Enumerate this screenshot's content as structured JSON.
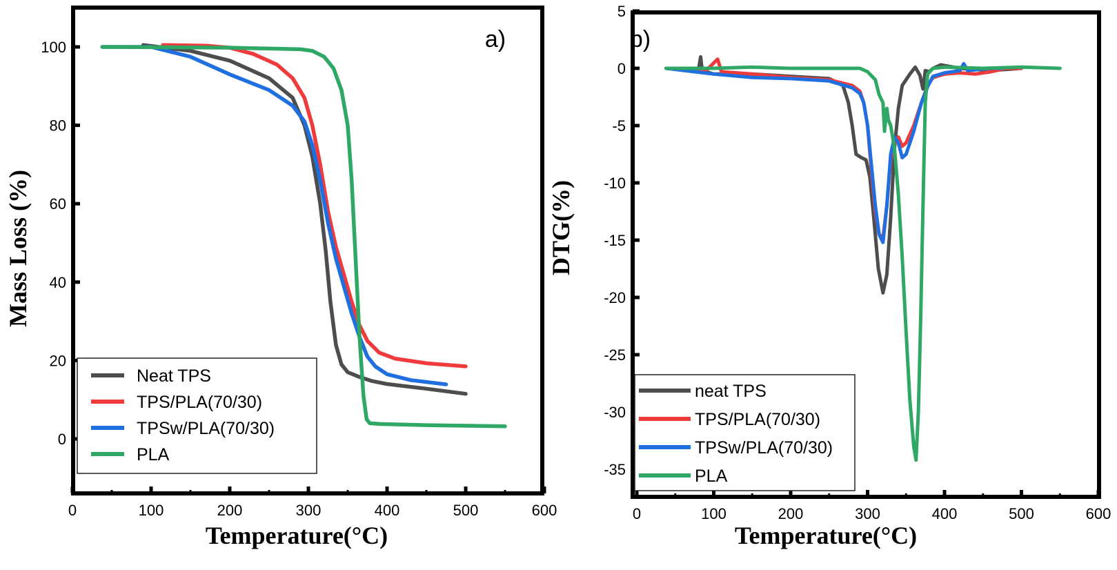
{
  "chart_data": [
    {
      "type": "line",
      "panel_label": "a)",
      "title": "",
      "xlabel": "Temperature(°C)",
      "ylabel": "Mass Loss (%)",
      "xlim": [
        0,
        600
      ],
      "ylim": [
        -10,
        110
      ],
      "xticks": [
        0,
        100,
        200,
        300,
        400,
        500,
        600
      ],
      "xtick_labels": [
        "0",
        "100",
        "200",
        "300",
        "400",
        "500",
        "600"
      ],
      "yticks": [
        0,
        20,
        40,
        60,
        80,
        100
      ],
      "ytick_labels": [
        "0",
        "20",
        "40",
        "60",
        "80",
        "100"
      ],
      "grid": false,
      "legend_position": "bottom-left",
      "series": [
        {
          "name": "Neat TPS",
          "color": "#4d4d4d",
          "x": [
            90,
            150,
            200,
            250,
            280,
            295,
            305,
            315,
            322,
            328,
            335,
            342,
            350,
            365,
            380,
            400,
            450,
            500
          ],
          "y": [
            100.5,
            99,
            96.5,
            92,
            87,
            80,
            72,
            60,
            48,
            35,
            24,
            19,
            17,
            15.8,
            14.8,
            14,
            12.8,
            11.5
          ]
        },
        {
          "name": "TPS/PLA(70/30)",
          "color": "#ef3b3b",
          "x": [
            115,
            170,
            200,
            230,
            260,
            280,
            295,
            305,
            315,
            325,
            335,
            345,
            355,
            365,
            375,
            390,
            410,
            450,
            500
          ],
          "y": [
            100.5,
            100.3,
            99.8,
            98.2,
            95.5,
            92,
            87,
            80,
            70,
            58,
            49,
            42,
            35,
            29,
            25,
            22,
            20.5,
            19.3,
            18.5
          ]
        },
        {
          "name": "TPSw/PLA(70/30)",
          "color": "#1f6fe0",
          "x": [
            38,
            100,
            150,
            200,
            250,
            280,
            295,
            305,
            315,
            325,
            335,
            345,
            355,
            365,
            375,
            385,
            400,
            430,
            475
          ],
          "y": [
            100,
            100,
            97.5,
            93,
            89,
            85,
            81,
            75,
            66,
            55,
            46,
            39,
            32,
            26,
            21,
            18.5,
            16.5,
            15,
            13.9
          ]
        },
        {
          "name": "PLA",
          "color": "#2fa865",
          "x": [
            38,
            200,
            290,
            305,
            320,
            332,
            342,
            350,
            355,
            360,
            365,
            370,
            374,
            378,
            390,
            450,
            550
          ],
          "y": [
            100,
            99.8,
            99.4,
            99,
            97.5,
            94.5,
            89,
            80,
            66,
            46,
            26,
            11,
            5,
            4,
            3.8,
            3.5,
            3.2
          ]
        }
      ]
    },
    {
      "type": "line",
      "panel_label": "b)",
      "title": "",
      "xlabel": "Temperature(°C)",
      "ylabel": "DTG(%)",
      "xlim": [
        -7,
        600
      ],
      "ylim": [
        -37.5,
        5
      ],
      "xticks": [
        0,
        100,
        200,
        300,
        400,
        500,
        600
      ],
      "xtick_labels": [
        "0",
        "100",
        "200",
        "300",
        "400",
        "500",
        "600"
      ],
      "yticks": [
        5,
        0,
        -5,
        -10,
        -15,
        -20,
        -25,
        -30,
        -35
      ],
      "ytick_labels": [
        "5",
        "0",
        "-5",
        "-10",
        "-15",
        "-20",
        "-25",
        "-30",
        "-35"
      ],
      "grid": false,
      "legend_position": "bottom-left",
      "series": [
        {
          "name": "neat TPS",
          "color": "#4d4d4d",
          "x": [
            38,
            60,
            80,
            83,
            85,
            100,
            150,
            200,
            250,
            268,
            275,
            280,
            285,
            292,
            298,
            303,
            308,
            314,
            320,
            325,
            330,
            335,
            340,
            345,
            355,
            362,
            368,
            372,
            375,
            380,
            385,
            395,
            420,
            460,
            500
          ],
          "y": [
            0,
            -0.1,
            -0.2,
            1,
            -0.2,
            -0.5,
            -0.5,
            -0.7,
            -0.9,
            -1.5,
            -3,
            -5,
            -7.5,
            -7.8,
            -8,
            -9.5,
            -13,
            -17.5,
            -19.6,
            -18,
            -13,
            -7,
            -3.5,
            -1.5,
            -0.5,
            0.1,
            -0.6,
            -1.8,
            -0.2,
            -0.3,
            0,
            0.3,
            0,
            -0.2,
            0
          ]
        },
        {
          "name": "TPS/PLA(70/30)",
          "color": "#ef3b3b",
          "x": [
            38,
            90,
            105,
            110,
            150,
            200,
            250,
            280,
            290,
            295,
            300,
            305,
            310,
            315,
            320,
            325,
            330,
            335,
            340,
            345,
            350,
            360,
            370,
            378,
            385,
            400,
            420,
            440,
            460,
            480,
            500
          ],
          "y": [
            0,
            -0.2,
            0.8,
            -0.3,
            -0.5,
            -0.8,
            -1,
            -1.5,
            -2,
            -3,
            -5,
            -9,
            -12.5,
            -14.5,
            -14.8,
            -12,
            -8,
            -6.5,
            -6,
            -6.8,
            -6.5,
            -5,
            -3,
            -1.5,
            -0.8,
            -0.5,
            -0.4,
            -0.5,
            -0.3,
            0,
            0
          ]
        },
        {
          "name": "TPSw/PLA(70/30)",
          "color": "#1f6fe0",
          "x": [
            38,
            100,
            150,
            200,
            250,
            280,
            290,
            295,
            300,
            305,
            310,
            315,
            320,
            325,
            330,
            335,
            340,
            345,
            350,
            360,
            370,
            378,
            385,
            400,
            420,
            425,
            430,
            460,
            475
          ],
          "y": [
            0,
            -0.5,
            -0.8,
            -0.9,
            -1.1,
            -1.7,
            -2.2,
            -3,
            -5,
            -8.5,
            -12,
            -14.5,
            -15.2,
            -12,
            -7.5,
            -6,
            -6.5,
            -7.8,
            -7.5,
            -5.5,
            -3,
            -1.6,
            -0.7,
            -0.4,
            -0.2,
            0.4,
            -0.2,
            0,
            0
          ]
        },
        {
          "name": "PLA",
          "color": "#2fa865",
          "x": [
            38,
            100,
            150,
            200,
            250,
            290,
            300,
            310,
            315,
            320,
            322,
            325,
            327,
            330,
            335,
            340,
            345,
            350,
            355,
            360,
            363,
            366,
            369,
            372,
            375,
            378,
            385,
            400,
            450,
            500,
            550
          ],
          "y": [
            0,
            0,
            0.1,
            0,
            0,
            0,
            -0.3,
            -1,
            -2.3,
            -3,
            -5.5,
            -3.5,
            -4.5,
            -5,
            -7,
            -11,
            -16.5,
            -23,
            -29,
            -33,
            -34.2,
            -30,
            -22,
            -12,
            -3,
            -0.5,
            0,
            0.1,
            0,
            0.1,
            0
          ]
        }
      ]
    }
  ]
}
